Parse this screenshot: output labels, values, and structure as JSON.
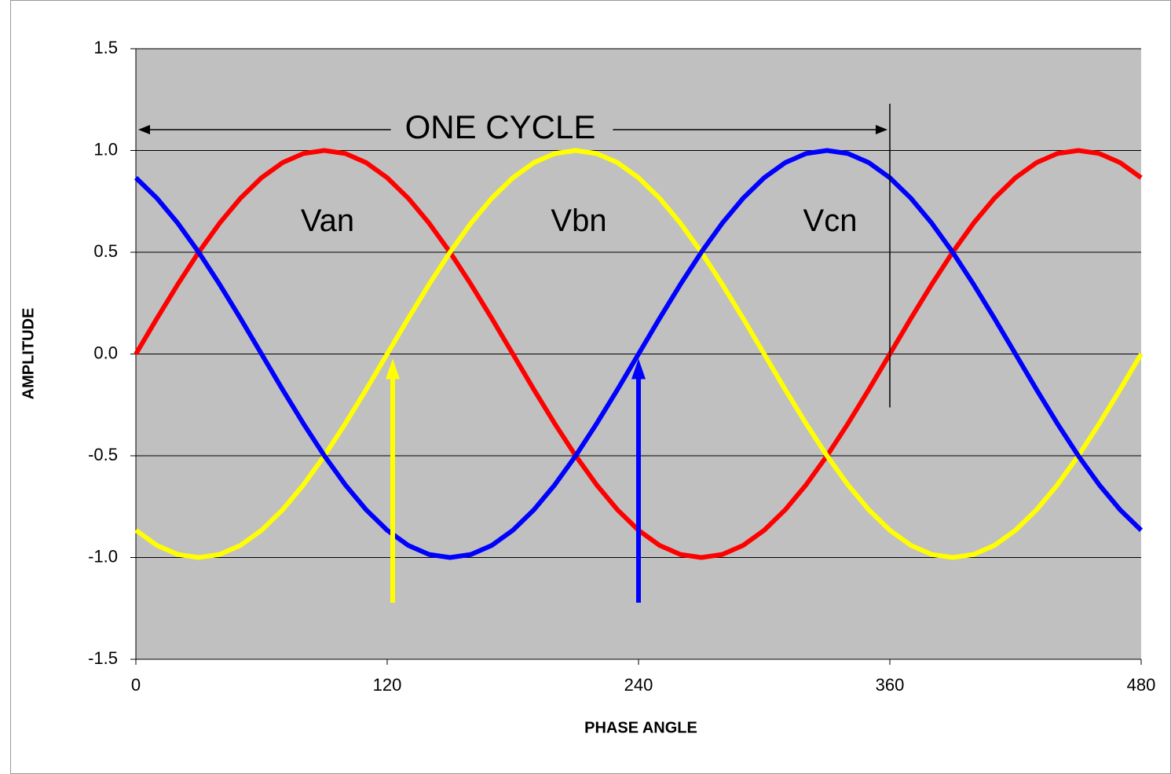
{
  "chart_data": {
    "type": "line",
    "xlabel": "PHASE ANGLE",
    "ylabel": "AMPLITUDE",
    "annotation": "ONE CYCLE",
    "x": [
      0,
      10,
      20,
      30,
      40,
      50,
      60,
      70,
      80,
      90,
      100,
      110,
      120,
      130,
      140,
      150,
      160,
      170,
      180,
      190,
      200,
      210,
      220,
      230,
      240,
      250,
      260,
      270,
      280,
      290,
      300,
      310,
      320,
      330,
      340,
      350,
      360,
      370,
      380,
      390,
      400,
      410,
      420,
      430,
      440,
      450,
      460,
      470,
      480
    ],
    "series": [
      {
        "name": "Van",
        "color": "#ff0000",
        "values": [
          0,
          0.174,
          0.342,
          0.5,
          0.643,
          0.766,
          0.866,
          0.94,
          0.985,
          1,
          0.985,
          0.94,
          0.866,
          0.766,
          0.643,
          0.5,
          0.342,
          0.174,
          0,
          -0.174,
          -0.342,
          -0.5,
          -0.643,
          -0.766,
          -0.866,
          -0.94,
          -0.985,
          -1,
          -0.985,
          -0.94,
          -0.866,
          -0.766,
          -0.643,
          -0.5,
          -0.342,
          -0.174,
          0,
          0.174,
          0.342,
          0.5,
          0.643,
          0.766,
          0.866,
          0.94,
          0.985,
          1,
          0.985,
          0.94,
          0.866
        ]
      },
      {
        "name": "Vbn",
        "color": "#ffff00",
        "values": [
          -0.866,
          -0.94,
          -0.985,
          -1,
          -0.985,
          -0.94,
          -0.866,
          -0.766,
          -0.643,
          -0.5,
          -0.342,
          -0.174,
          0,
          0.174,
          0.342,
          0.5,
          0.643,
          0.766,
          0.866,
          0.94,
          0.985,
          1,
          0.985,
          0.94,
          0.866,
          0.766,
          0.643,
          0.5,
          0.342,
          0.174,
          0,
          -0.174,
          -0.342,
          -0.5,
          -0.643,
          -0.766,
          -0.866,
          -0.94,
          -0.985,
          -1,
          -0.985,
          -0.94,
          -0.866,
          -0.766,
          -0.643,
          -0.5,
          -0.342,
          -0.174,
          0
        ]
      },
      {
        "name": "Vcn",
        "color": "#0000ff",
        "values": [
          0.866,
          0.766,
          0.643,
          0.5,
          0.342,
          0.174,
          0,
          -0.174,
          -0.342,
          -0.5,
          -0.643,
          -0.766,
          -0.866,
          -0.94,
          -0.985,
          -1,
          -0.985,
          -0.94,
          -0.866,
          -0.766,
          -0.643,
          -0.5,
          -0.342,
          -0.174,
          0,
          0.174,
          0.342,
          0.5,
          0.643,
          0.766,
          0.866,
          0.94,
          0.985,
          1,
          0.985,
          0.94,
          0.866,
          0.766,
          0.643,
          0.5,
          0.342,
          0.174,
          0,
          -0.174,
          -0.342,
          -0.5,
          -0.643,
          -0.766,
          -0.866
        ]
      }
    ],
    "xlim": [
      0,
      480
    ],
    "xticks": [
      0,
      120,
      240,
      360,
      480
    ],
    "ylim": [
      -1.5,
      1.5
    ],
    "yticks": [
      -1.5,
      {
        "value": -1,
        "label": "-1.0"
      },
      -0.5,
      {
        "value": 0,
        "label": "0.0"
      },
      0.5,
      {
        "value": 1,
        "label": "1.0"
      },
      1.5
    ],
    "grid": true,
    "background": "#c0c0c0"
  }
}
